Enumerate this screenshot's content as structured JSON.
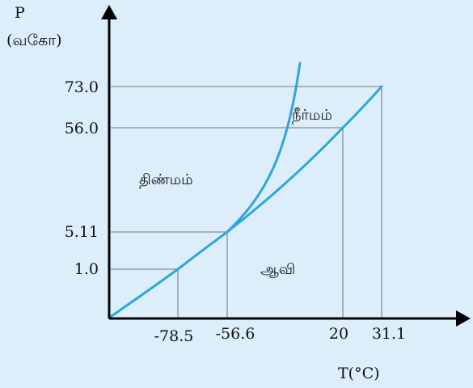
{
  "axes": {
    "y_symbol": "P",
    "y_unit": "(வகோ)",
    "x_label": "T(°C)"
  },
  "y_ticks": [
    "73.0",
    "56.0",
    "5.11",
    "1.0"
  ],
  "x_ticks": [
    "-78.5",
    "-56.6",
    "20",
    "31.1"
  ],
  "regions": {
    "solid": "திண்மம்",
    "liquid": "நீர்மம்",
    "gas": "ஆவி"
  },
  "colors": {
    "background": "#ddeefb",
    "curve": "#2fa6dd",
    "axis": "#000000",
    "guide": "#6f7275"
  },
  "points": {
    "triple_point": {
      "T": -56.6,
      "P": 5.11
    },
    "critical_point": {
      "T": 31.1,
      "P": 73.0
    },
    "sublimation_point": {
      "T": -78.5,
      "P": 1.0
    },
    "liquid_vapour_point": {
      "T": 20,
      "P": 56.0
    }
  }
}
